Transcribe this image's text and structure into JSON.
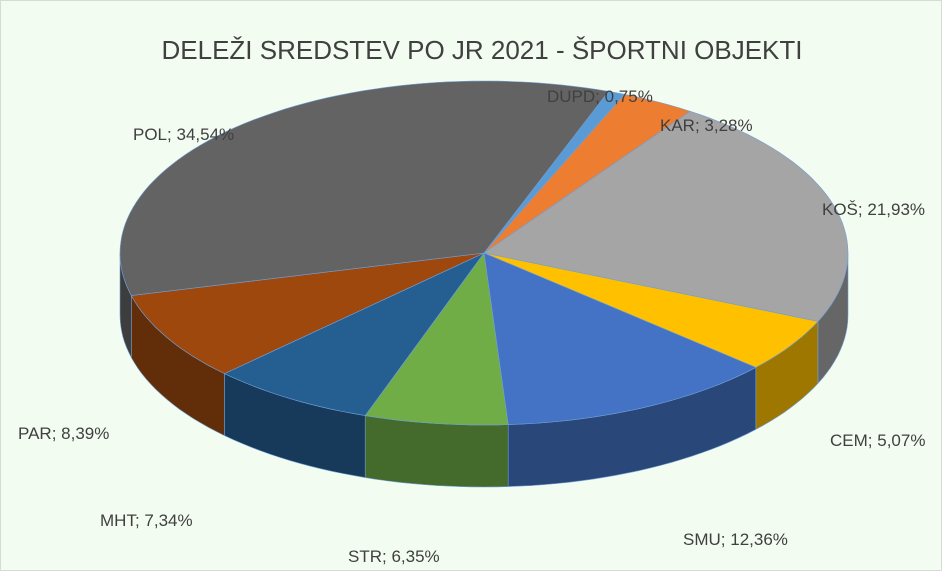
{
  "chart_data": {
    "type": "pie",
    "title": "DELEŽI SREDSTEV PO JR 2021 - ŠPORTNI OBJEKTI",
    "categories": [
      "DUPD",
      "KAR",
      "KOŠ",
      "CEM",
      "SMU",
      "STR",
      "MHT",
      "PAR",
      "POL"
    ],
    "values": [
      0.75,
      3.28,
      21.93,
      5.07,
      12.36,
      6.35,
      7.34,
      8.39,
      34.54
    ],
    "value_labels": [
      "0,75%",
      "3,28%",
      "21,93%",
      "5,07%",
      "12,36%",
      "6,35%",
      "7,34%",
      "8,39%",
      "34,54%"
    ],
    "label_separator": "; ",
    "colors": [
      "#5b9bd5",
      "#ed7d31",
      "#a5a5a5",
      "#ffc000",
      "#4472c4",
      "#70ad47",
      "#255e91",
      "#9e480e",
      "#636363"
    ]
  }
}
